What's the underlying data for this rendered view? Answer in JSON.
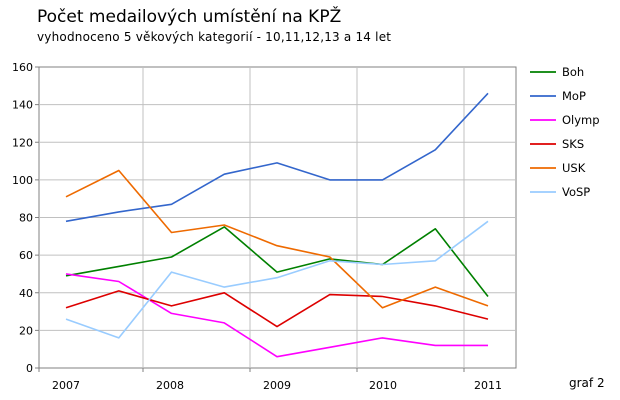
{
  "chart_data": {
    "type": "line",
    "title": "Počet medailových umístění na KPŽ",
    "subtitle": "vyhodnoceno 5 věkových kategorií - 10,11,12,13 a 14 let",
    "note": "graf 2",
    "xlabel": "",
    "ylabel": "",
    "ylim": [
      0,
      160
    ],
    "yticks": [
      "0",
      "20",
      "40",
      "60",
      "80",
      "100",
      "120",
      "140",
      "160"
    ],
    "xticks": [
      "2007",
      "2008",
      "2009",
      "2010",
      "2011"
    ],
    "x": [
      0,
      0.5,
      1,
      1.5,
      2,
      2.5,
      3,
      3.5,
      4
    ],
    "grid": true,
    "legend_position": "right",
    "series": [
      {
        "name": "Boh",
        "color": "#008000",
        "values": [
          49,
          54,
          59,
          75,
          51,
          58,
          55,
          74,
          38
        ]
      },
      {
        "name": "MoP",
        "color": "#3366cc",
        "values": [
          78,
          83,
          87,
          103,
          109,
          100,
          100,
          116,
          146
        ]
      },
      {
        "name": "Olymp",
        "color": "#ff00ff",
        "values": [
          50,
          46,
          29,
          24,
          6,
          11,
          16,
          12,
          12
        ]
      },
      {
        "name": "SKS",
        "color": "#dd0000",
        "values": [
          32,
          41,
          33,
          40,
          22,
          39,
          38,
          33,
          26
        ]
      },
      {
        "name": "USK",
        "color": "#ee6a00",
        "values": [
          91,
          105,
          72,
          76,
          65,
          59,
          32,
          43,
          33
        ]
      },
      {
        "name": "VoSP",
        "color": "#99ccff",
        "values": [
          26,
          16,
          51,
          43,
          48,
          57,
          55,
          57,
          78
        ]
      }
    ]
  }
}
